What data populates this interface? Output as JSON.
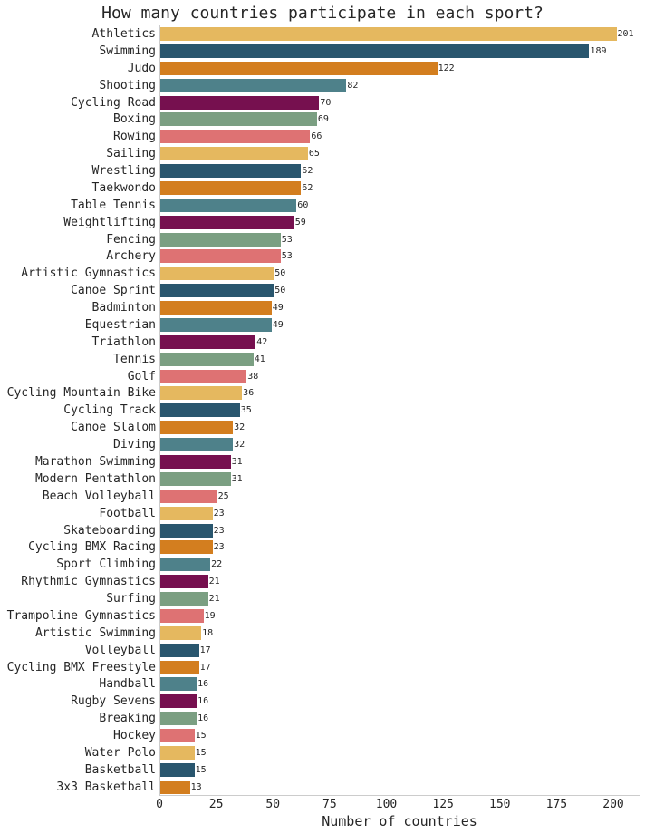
{
  "chart_data": {
    "type": "bar",
    "orientation": "horizontal",
    "title": "How many countries participate in each sport?",
    "xlabel": "Number of countries",
    "ylabel": "",
    "xlim": [
      0,
      212
    ],
    "xticks": [
      0,
      25,
      50,
      75,
      100,
      125,
      150,
      175,
      200
    ],
    "grid": false,
    "legend": null,
    "palette": [
      "#e5b85f",
      "#29566e",
      "#d37e1f",
      "#4e818a",
      "#76104f",
      "#7b9f82",
      "#de7273"
    ],
    "categories": [
      "Athletics",
      "Swimming",
      "Judo",
      "Shooting",
      "Cycling Road",
      "Boxing",
      "Rowing",
      "Sailing",
      "Wrestling",
      "Taekwondo",
      "Table Tennis",
      "Weightlifting",
      "Fencing",
      "Archery",
      "Artistic Gymnastics",
      "Canoe Sprint",
      "Badminton",
      "Equestrian",
      "Triathlon",
      "Tennis",
      "Golf",
      "Cycling Mountain Bike",
      "Cycling Track",
      "Canoe Slalom",
      "Diving",
      "Marathon Swimming",
      "Modern Pentathlon",
      "Beach Volleyball",
      "Football",
      "Skateboarding",
      "Cycling BMX Racing",
      "Sport Climbing",
      "Rhythmic Gymnastics",
      "Surfing",
      "Trampoline Gymnastics",
      "Artistic Swimming",
      "Volleyball",
      "Cycling BMX Freestyle",
      "Handball",
      "Rugby Sevens",
      "Breaking",
      "Hockey",
      "Water Polo",
      "Basketball",
      "3x3 Basketball"
    ],
    "values": [
      201,
      189,
      122,
      82,
      70,
      69,
      66,
      65,
      62,
      62,
      60,
      59,
      53,
      53,
      50,
      50,
      49,
      49,
      42,
      41,
      38,
      36,
      35,
      32,
      32,
      31,
      31,
      25,
      23,
      23,
      23,
      22,
      21,
      21,
      19,
      18,
      17,
      17,
      16,
      16,
      16,
      15,
      15,
      15,
      13
    ]
  }
}
